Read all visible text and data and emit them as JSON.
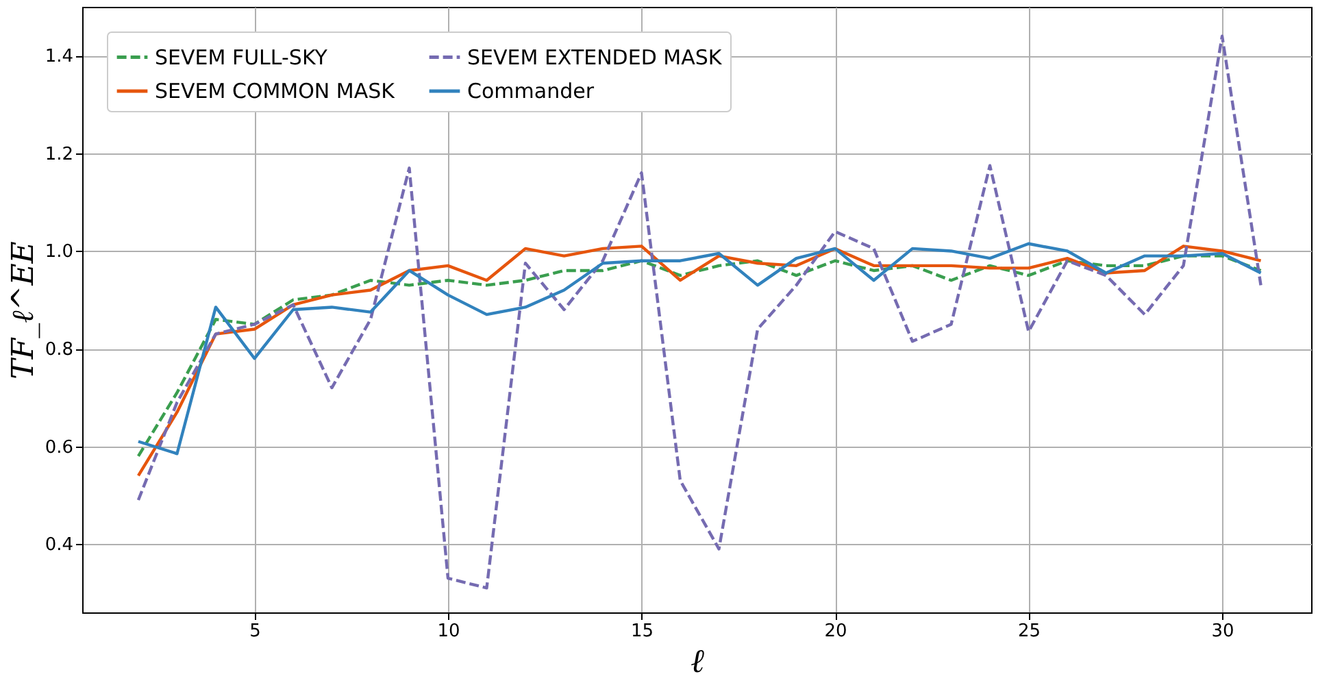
{
  "chart_data": {
    "type": "line",
    "xlabel": "ℓ",
    "ylabel": "TF_ℓ^EE",
    "x": [
      2,
      3,
      4,
      5,
      6,
      7,
      8,
      9,
      10,
      11,
      12,
      13,
      14,
      15,
      16,
      17,
      18,
      19,
      20,
      21,
      22,
      23,
      24,
      25,
      26,
      27,
      28,
      29,
      30,
      31
    ],
    "series": [
      {
        "name": "SEVEM FULL-SKY",
        "color": "#3a9e4f",
        "line_style": "dashed",
        "values": [
          0.58,
          0.71,
          0.86,
          0.85,
          0.9,
          0.91,
          0.94,
          0.93,
          0.94,
          0.93,
          0.94,
          0.96,
          0.96,
          0.98,
          0.95,
          0.97,
          0.98,
          0.95,
          0.98,
          0.96,
          0.97,
          0.94,
          0.97,
          0.95,
          0.98,
          0.97,
          0.97,
          0.99,
          0.99,
          0.96
        ]
      },
      {
        "name": "SEVEM COMMON MASK",
        "color": "#e6550d",
        "line_style": "solid",
        "values": [
          0.54,
          0.67,
          0.83,
          0.84,
          0.89,
          0.91,
          0.92,
          0.96,
          0.97,
          0.94,
          1.005,
          0.99,
          1.005,
          1.01,
          0.94,
          0.99,
          0.975,
          0.97,
          1.005,
          0.97,
          0.97,
          0.97,
          0.965,
          0.965,
          0.985,
          0.955,
          0.96,
          1.01,
          1.0,
          0.98
        ]
      },
      {
        "name": "SEVEM EXTENDED MASK",
        "color": "#756bb1",
        "line_style": "dashed",
        "values": [
          0.49,
          0.69,
          0.83,
          0.85,
          0.89,
          0.72,
          0.86,
          1.17,
          0.33,
          0.31,
          0.975,
          0.88,
          0.98,
          1.16,
          0.53,
          0.39,
          0.84,
          0.93,
          1.04,
          1.005,
          0.815,
          0.85,
          1.175,
          0.835,
          0.98,
          0.95,
          0.87,
          0.97,
          1.44,
          0.93
        ]
      },
      {
        "name": "Commander",
        "color": "#3182bd",
        "line_style": "solid",
        "values": [
          0.61,
          0.585,
          0.885,
          0.78,
          0.88,
          0.885,
          0.875,
          0.96,
          0.91,
          0.87,
          0.885,
          0.92,
          0.975,
          0.98,
          0.98,
          0.995,
          0.93,
          0.985,
          1.005,
          0.94,
          1.005,
          1.0,
          0.985,
          1.015,
          1.0,
          0.955,
          0.99,
          0.99,
          0.995,
          0.955
        ]
      }
    ],
    "xlim": [
      0.55,
      32.3
    ],
    "ylim": [
      0.26,
      1.5
    ],
    "xticks": [
      5,
      10,
      15,
      20,
      25,
      30
    ],
    "yticks": [
      0.4,
      0.6,
      0.8,
      {
        "value": 1,
        "label": "1.0"
      },
      1.2,
      1.4
    ],
    "grid": true,
    "legend": "top left"
  }
}
